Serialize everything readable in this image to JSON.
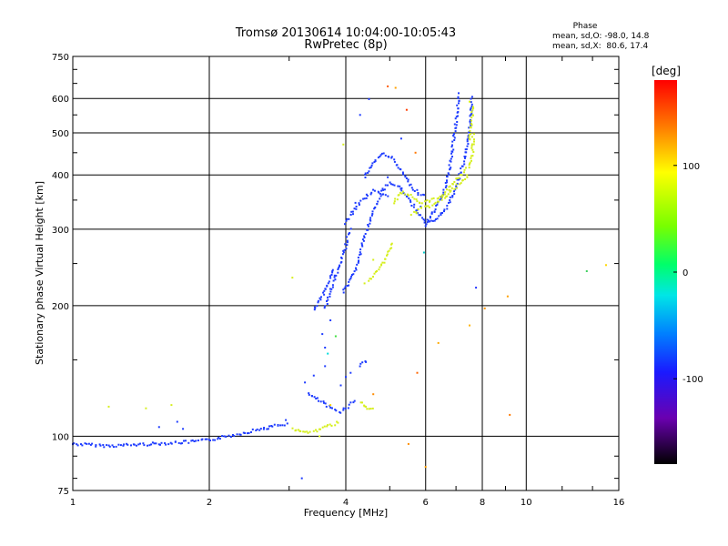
{
  "chart_data": {
    "type": "scatter",
    "title": "Tromsø 20130614 10:04:00-10:05:43",
    "subtitle": "RwPretec (8p)",
    "xlabel": "Frequency [MHz]",
    "ylabel": "Stationary phase Virtual Height [km]",
    "xscale": "log",
    "yscale": "log",
    "xlim": [
      1,
      16
    ],
    "ylim": [
      75,
      750
    ],
    "xticks": [
      1,
      2,
      4,
      6,
      8,
      10,
      16
    ],
    "xtick_labels": [
      "1",
      "2",
      "4",
      "6",
      "8",
      "10",
      "16"
    ],
    "yticks": [
      75,
      100,
      200,
      300,
      400,
      500,
      600,
      750
    ],
    "ytick_labels": [
      "75",
      "100",
      "200",
      "300",
      "400",
      "500",
      "600",
      "750"
    ],
    "grid": true,
    "phase_info": {
      "title": "Phase",
      "line1": "mean, sd,O: -98.0, 14.8",
      "line2": "mean, sd,X:  80.6, 17.4"
    },
    "colorbar": {
      "label": "[deg]",
      "range": [
        -180,
        180
      ],
      "ticks": [
        100,
        0,
        -100
      ],
      "tick_labels": [
        "100",
        "0",
        "-100"
      ]
    },
    "series": [
      {
        "name": "O",
        "color": "#1e3cff",
        "phase": -98,
        "segments": [
          [
            [
              1.0,
              96
            ],
            [
              1.2,
              95
            ],
            [
              1.5,
              96
            ],
            [
              1.8,
              97
            ],
            [
              2.0,
              98
            ],
            [
              2.3,
              101
            ],
            [
              2.6,
              104
            ],
            [
              2.85,
              106
            ],
            [
              3.0,
              107
            ]
          ],
          [
            [
              3.3,
              125
            ],
            [
              3.5,
              121
            ],
            [
              3.7,
              116
            ],
            [
              3.9,
              114
            ],
            [
              4.05,
              117
            ],
            [
              4.2,
              122
            ]
          ],
          [
            [
              3.6,
              198
            ],
            [
              3.7,
              215
            ],
            [
              3.8,
              234
            ],
            [
              3.9,
              250
            ],
            [
              4.0,
              275
            ],
            [
              4.05,
              290
            ],
            [
              4.12,
              302
            ]
          ],
          [
            [
              3.95,
              215
            ],
            [
              4.1,
              228
            ],
            [
              4.25,
              250
            ],
            [
              4.35,
              275
            ],
            [
              4.45,
              300
            ],
            [
              4.55,
              320
            ],
            [
              4.7,
              345
            ],
            [
              4.85,
              370
            ],
            [
              5.0,
              382
            ],
            [
              5.2,
              378
            ],
            [
              5.4,
              362
            ],
            [
              5.6,
              342
            ],
            [
              5.8,
              325
            ],
            [
              6.0,
              312
            ],
            [
              6.3,
              312
            ],
            [
              6.6,
              330
            ],
            [
              6.9,
              360
            ],
            [
              7.1,
              395
            ],
            [
              7.3,
              430
            ],
            [
              7.45,
              480
            ],
            [
              7.55,
              550
            ],
            [
              7.6,
              610
            ]
          ],
          [
            [
              4.4,
              395
            ],
            [
              4.55,
              420
            ],
            [
              4.7,
              438
            ],
            [
              4.85,
              448
            ],
            [
              5.0,
              442
            ],
            [
              5.2,
              420
            ],
            [
              5.4,
              398
            ],
            [
              5.6,
              375
            ],
            [
              5.8,
              362
            ],
            [
              6.0,
              357
            ]
          ],
          [
            [
              4.0,
              310
            ],
            [
              4.15,
              330
            ],
            [
              4.3,
              345
            ],
            [
              4.45,
              358
            ],
            [
              4.6,
              368
            ],
            [
              4.8,
              365
            ],
            [
              5.0,
              358
            ]
          ],
          [
            [
              6.0,
              310
            ],
            [
              6.3,
              332
            ],
            [
              6.5,
              355
            ],
            [
              6.7,
              390
            ],
            [
              6.85,
              445
            ],
            [
              6.95,
              500
            ],
            [
              7.05,
              560
            ],
            [
              7.1,
              620
            ]
          ],
          [
            [
              3.4,
              195
            ],
            [
              3.6,
              215
            ],
            [
              3.75,
              245
            ]
          ],
          [
            [
              4.3,
              145
            ],
            [
              4.4,
              148
            ],
            [
              4.5,
              147
            ]
          ]
        ],
        "scatter": [
          [
            1.55,
            105
          ],
          [
            1.7,
            108
          ],
          [
            1.75,
            104
          ],
          [
            2.7,
            104
          ],
          [
            2.95,
            109
          ],
          [
            3.2,
            80
          ],
          [
            3.25,
            133
          ],
          [
            3.4,
            138
          ],
          [
            3.6,
            145
          ],
          [
            3.55,
            172
          ],
          [
            3.7,
            185
          ],
          [
            3.6,
            160
          ],
          [
            4.0,
            137
          ],
          [
            4.1,
            140
          ],
          [
            3.9,
            131
          ],
          [
            4.3,
            550
          ],
          [
            4.5,
            598
          ],
          [
            4.95,
            395
          ],
          [
            5.3,
            485
          ],
          [
            5.85,
            338
          ],
          [
            6.0,
            305
          ],
          [
            6.2,
            328
          ],
          [
            4.15,
            325
          ],
          [
            4.2,
            345
          ]
        ]
      },
      {
        "name": "X",
        "color": "#d6ef1e",
        "phase": 80.6,
        "segments": [
          [
            [
              5.1,
              345
            ],
            [
              5.3,
              365
            ],
            [
              5.5,
              360
            ],
            [
              5.7,
              350
            ],
            [
              5.9,
              345
            ],
            [
              6.1,
              348
            ],
            [
              6.4,
              355
            ],
            [
              6.7,
              368
            ],
            [
              7.0,
              390
            ],
            [
              7.3,
              405
            ],
            [
              7.5,
              420
            ],
            [
              7.6,
              440
            ],
            [
              7.65,
              500
            ]
          ],
          [
            [
              5.6,
              325
            ],
            [
              5.9,
              335
            ],
            [
              6.2,
              340
            ],
            [
              6.5,
              350
            ],
            [
              6.9,
              370
            ],
            [
              7.2,
              385
            ],
            [
              7.5,
              400
            ]
          ],
          [
            [
              4.5,
              228
            ],
            [
              4.7,
              240
            ],
            [
              4.85,
              253
            ],
            [
              5.0,
              268
            ],
            [
              5.1,
              280
            ]
          ],
          [
            [
              4.3,
              120
            ],
            [
              4.4,
              117
            ],
            [
              4.5,
              115
            ],
            [
              4.65,
              116
            ]
          ],
          [
            [
              3.05,
              104
            ],
            [
              3.25,
              102
            ],
            [
              3.45,
              103
            ],
            [
              3.7,
              106
            ],
            [
              3.9,
              108
            ]
          ],
          [
            [
              7.5,
              480
            ],
            [
              7.6,
              550
            ],
            [
              7.65,
              580
            ]
          ]
        ],
        "scatter": [
          [
            1.2,
            117
          ],
          [
            1.45,
            116
          ],
          [
            1.65,
            118
          ],
          [
            3.05,
            232
          ],
          [
            3.95,
            470
          ],
          [
            4.4,
            225
          ],
          [
            4.6,
            255
          ],
          [
            7.5,
            590
          ],
          [
            3.5,
            100
          ]
        ]
      },
      {
        "name": "other",
        "color": "#888888",
        "phase": null,
        "segments": [],
        "scatter": [
          {
            "x": 3.65,
            "y": 155,
            "c": "#00dcdc"
          },
          {
            "x": 3.8,
            "y": 170,
            "c": "#40e040"
          },
          {
            "x": 4.6,
            "y": 125,
            "c": "#ff8c00"
          },
          {
            "x": 4.95,
            "y": 640,
            "c": "#ff5a00"
          },
          {
            "x": 5.15,
            "y": 635,
            "c": "#ffa000"
          },
          {
            "x": 5.45,
            "y": 565,
            "c": "#ff3c00"
          },
          {
            "x": 5.7,
            "y": 450,
            "c": "#ff7800"
          },
          {
            "x": 5.75,
            "y": 140,
            "c": "#ff6400"
          },
          {
            "x": 5.95,
            "y": 265,
            "c": "#00c8c8"
          },
          {
            "x": 6.0,
            "y": 85,
            "c": "#ffa000"
          },
          {
            "x": 5.5,
            "y": 96,
            "c": "#ff8c00"
          },
          {
            "x": 6.4,
            "y": 164,
            "c": "#ffaa00"
          },
          {
            "x": 7.5,
            "y": 180,
            "c": "#ffb400"
          },
          {
            "x": 7.75,
            "y": 220,
            "c": "#2030ff"
          },
          {
            "x": 8.1,
            "y": 197,
            "c": "#ff9600"
          },
          {
            "x": 9.2,
            "y": 112,
            "c": "#ff7800"
          },
          {
            "x": 9.1,
            "y": 210,
            "c": "#ffa000"
          },
          {
            "x": 13.6,
            "y": 240,
            "c": "#40d060"
          },
          {
            "x": 15.0,
            "y": 248,
            "c": "#ffd700"
          },
          {
            "x": 3.7,
            "y": 118,
            "c": "#ffd700"
          }
        ]
      }
    ]
  }
}
